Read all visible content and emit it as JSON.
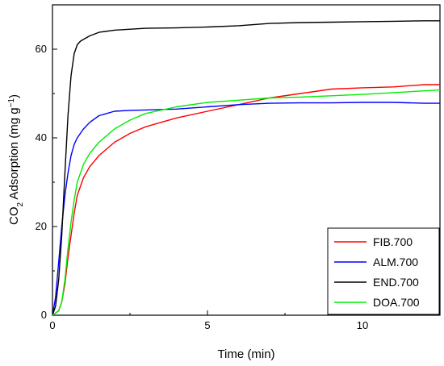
{
  "chart_data": {
    "type": "line",
    "title": "",
    "xlabel": "Time (min)",
    "ylabel": {
      "main": "CO",
      "sub": "2",
      "rest": " Adsorption (mg g",
      "sup": "−1",
      "end": ")"
    },
    "xlim": [
      0,
      12.5
    ],
    "ylim": [
      0,
      70
    ],
    "xticks": [
      0,
      5,
      10
    ],
    "yticks": [
      0,
      20,
      40,
      60
    ],
    "grid": false,
    "legend": "bottom-right",
    "series": [
      {
        "name": "FIB.700",
        "color": "#ff0000",
        "x": [
          0,
          0.2,
          0.3,
          0.4,
          0.5,
          0.6,
          0.7,
          0.8,
          1.0,
          1.2,
          1.5,
          2.0,
          2.5,
          3.0,
          4.0,
          5.0,
          6.0,
          7.0,
          8.0,
          9.0,
          10.0,
          11.0,
          12.0,
          12.5
        ],
        "y": [
          0,
          1,
          3,
          7,
          13,
          18,
          23,
          27,
          31,
          33.5,
          36,
          39,
          41,
          42.5,
          44.5,
          46,
          47.5,
          49,
          50,
          51,
          51.3,
          51.5,
          52,
          52
        ]
      },
      {
        "name": "ALM.700",
        "color": "#0000ff",
        "x": [
          0,
          0.1,
          0.2,
          0.3,
          0.4,
          0.5,
          0.6,
          0.7,
          0.8,
          1.0,
          1.2,
          1.5,
          2.0,
          2.5,
          3.0,
          4.0,
          5.0,
          6.0,
          7.0,
          8.0,
          9.0,
          10.0,
          11.0,
          12.0,
          12.5
        ],
        "y": [
          0,
          4,
          12,
          20,
          27,
          32,
          36,
          38.5,
          40,
          42,
          43.5,
          45,
          46,
          46.2,
          46.3,
          46.5,
          47,
          47.5,
          47.8,
          47.9,
          47.9,
          48,
          48,
          47.8,
          47.8
        ]
      },
      {
        "name": "END.700",
        "color": "#000000",
        "x": [
          0,
          0.1,
          0.2,
          0.3,
          0.4,
          0.5,
          0.6,
          0.7,
          0.8,
          0.9,
          1.0,
          1.2,
          1.5,
          2.0,
          3.0,
          4.0,
          5.0,
          6.0,
          7.0,
          8.0,
          9.0,
          10.0,
          11.0,
          12.0,
          12.5
        ],
        "y": [
          0,
          2,
          8,
          18,
          32,
          45,
          54,
          59,
          61,
          61.8,
          62.2,
          63,
          63.8,
          64.3,
          64.7,
          64.8,
          65,
          65.3,
          65.8,
          66,
          66.1,
          66.2,
          66.3,
          66.4,
          66.4
        ]
      },
      {
        "name": "DOA.700",
        "color": "#00ee00",
        "x": [
          0,
          0.2,
          0.3,
          0.4,
          0.5,
          0.6,
          0.7,
          0.8,
          1.0,
          1.2,
          1.5,
          2.0,
          2.5,
          3.0,
          4.0,
          5.0,
          6.0,
          7.0,
          8.0,
          9.0,
          10.0,
          11.0,
          12.0,
          12.5
        ],
        "y": [
          0,
          1,
          3,
          8,
          15,
          21,
          26,
          30,
          34,
          36.5,
          39,
          42,
          44,
          45.5,
          47,
          48,
          48.5,
          49,
          49.2,
          49.5,
          49.8,
          50.2,
          50.6,
          50.8
        ]
      }
    ]
  }
}
